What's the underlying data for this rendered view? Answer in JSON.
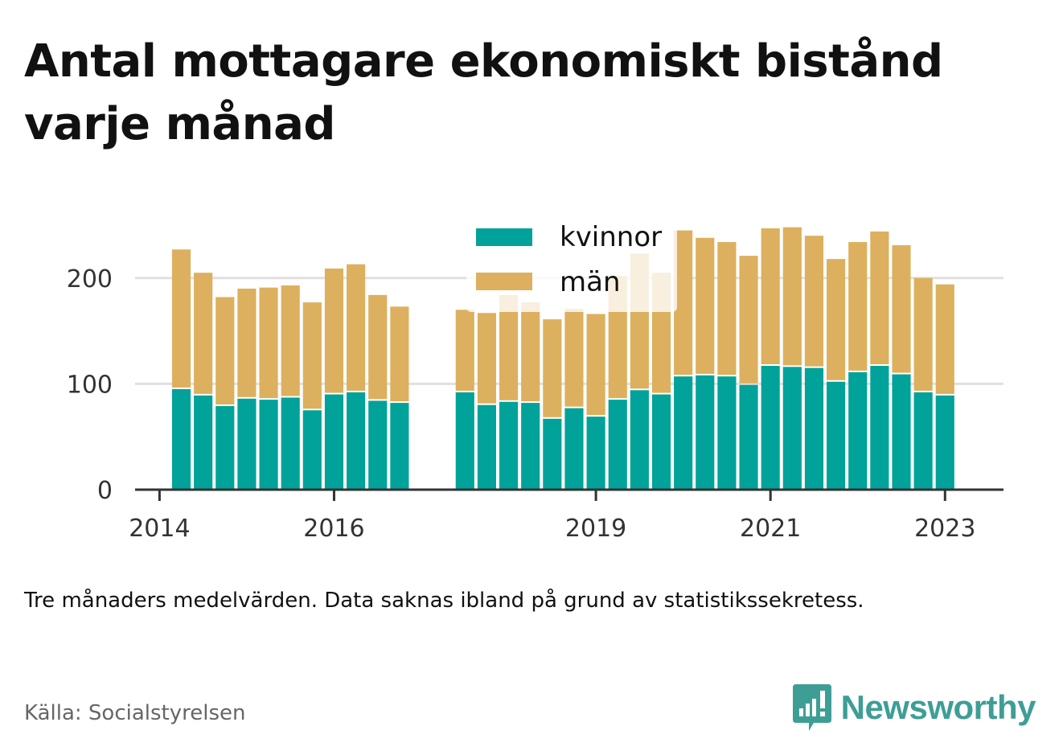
{
  "title": "Antal mottagare ekonomiskt bistånd varje månad",
  "note": "Tre månaders medelvärden. Data saknas ibland på grund av statistikssekretess.",
  "source": "Källa: Socialstyrelsen",
  "brand": {
    "name": "Newsworthy",
    "logo_icon": "bar-chart-speech-bubble-icon"
  },
  "colors": {
    "kvinnor": "#00a29a",
    "man": "#dcb05e",
    "grid": "#e0e0e0",
    "axis": "#333333",
    "brand": "#3e9e96"
  },
  "chart_data": {
    "type": "bar",
    "stacked": true,
    "series": [
      {
        "name": "kvinnor",
        "values": [
          95,
          89,
          79,
          86,
          85,
          87,
          75,
          90,
          92,
          84,
          82,
          92,
          80,
          83,
          82,
          67,
          77,
          69,
          85,
          94,
          90,
          107,
          108,
          107,
          99,
          117,
          116,
          115,
          102,
          111,
          117,
          109,
          92,
          89
        ]
      },
      {
        "name": "män",
        "values": [
          132,
          116,
          103,
          104,
          106,
          106,
          102,
          119,
          121,
          100,
          91,
          78,
          87,
          101,
          95,
          94,
          94,
          97,
          117,
          129,
          115,
          138,
          130,
          127,
          122,
          130,
          132,
          125,
          116,
          123,
          127,
          122,
          108,
          105
        ]
      }
    ],
    "x": [
      2014.25,
      2014.5,
      2014.75,
      2015.0,
      2015.25,
      2015.5,
      2015.75,
      2016.0,
      2016.25,
      2016.5,
      2016.75,
      2017.5,
      2017.75,
      2018.0,
      2018.25,
      2018.5,
      2018.75,
      2019.0,
      2019.25,
      2019.5,
      2019.75,
      2020.0,
      2020.25,
      2020.5,
      2020.75,
      2021.0,
      2021.25,
      2021.5,
      2021.75,
      2022.0,
      2022.25,
      2022.5,
      2022.75,
      2023.0
    ],
    "xlim": [
      2013.72,
      2023.67
    ],
    "xticks": [
      2014,
      2016,
      2019,
      2021,
      2023
    ],
    "xtick_labels": [
      "2014",
      "2016",
      "2019",
      "2021",
      "2023"
    ],
    "ylim": [
      0,
      250
    ],
    "yticks": [
      0,
      100,
      200
    ],
    "ytick_labels": [
      "0",
      "100",
      "200"
    ],
    "grid": true,
    "legend": {
      "position": "top-center",
      "entries": [
        "kvinnor",
        "män"
      ]
    },
    "xlabel": "",
    "ylabel": ""
  }
}
